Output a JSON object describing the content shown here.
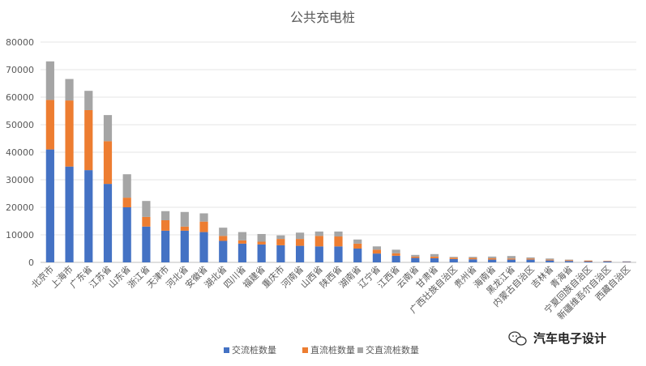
{
  "chart_data": {
    "type": "bar",
    "stacked": true,
    "title": "公共充电桩",
    "ylim": [
      0,
      80000
    ],
    "yticks": [
      0,
      10000,
      20000,
      30000,
      40000,
      50000,
      60000,
      70000,
      80000
    ],
    "grid": true,
    "legend_position": "bottom",
    "categories": [
      "北京市",
      "上海市",
      "广东省",
      "江苏省",
      "山东省",
      "浙江省",
      "天津市",
      "河北省",
      "安徽省",
      "湖北省",
      "四川省",
      "福建省",
      "重庆市",
      "河南省",
      "山西省",
      "陕西省",
      "湖南省",
      "辽宁省",
      "江西省",
      "云南省",
      "甘肃省",
      "广西壮族自治区",
      "贵州省",
      "海南省",
      "黑龙江省",
      "内蒙古自治区",
      "吉林省",
      "青海省",
      "宁夏回族自治区",
      "新疆维吾尔自治区",
      "西藏自治区"
    ],
    "series": [
      {
        "name": "交流桩数量",
        "color": "#4472C4",
        "values": [
          41000,
          34800,
          33500,
          28500,
          20000,
          13000,
          11500,
          11500,
          11000,
          7800,
          6800,
          6500,
          6200,
          6000,
          5800,
          5800,
          5000,
          3200,
          2400,
          1600,
          1500,
          1200,
          1100,
          1000,
          1000,
          1000,
          700,
          500,
          300,
          300,
          200
        ]
      },
      {
        "name": "直流桩数量",
        "color": "#ED7D31",
        "values": [
          18000,
          24000,
          21800,
          15500,
          3500,
          3500,
          3800,
          1500,
          3800,
          1800,
          1200,
          1000,
          2300,
          2500,
          3800,
          3600,
          1800,
          1400,
          900,
          500,
          600,
          500,
          500,
          500,
          400,
          400,
          300,
          300,
          300,
          200,
          100
        ]
      },
      {
        "name": "交直流桩数量",
        "color": "#A5A5A5",
        "values": [
          14000,
          7800,
          7000,
          9500,
          8500,
          5800,
          3300,
          5300,
          3000,
          3000,
          3000,
          2800,
          1300,
          2300,
          1600,
          1800,
          1500,
          1200,
          1300,
          600,
          900,
          300,
          400,
          600,
          900,
          400,
          400,
          200,
          100,
          100,
          100
        ]
      }
    ]
  },
  "watermark": {
    "text": "汽车电子设计",
    "icon": "wechat-icon"
  }
}
